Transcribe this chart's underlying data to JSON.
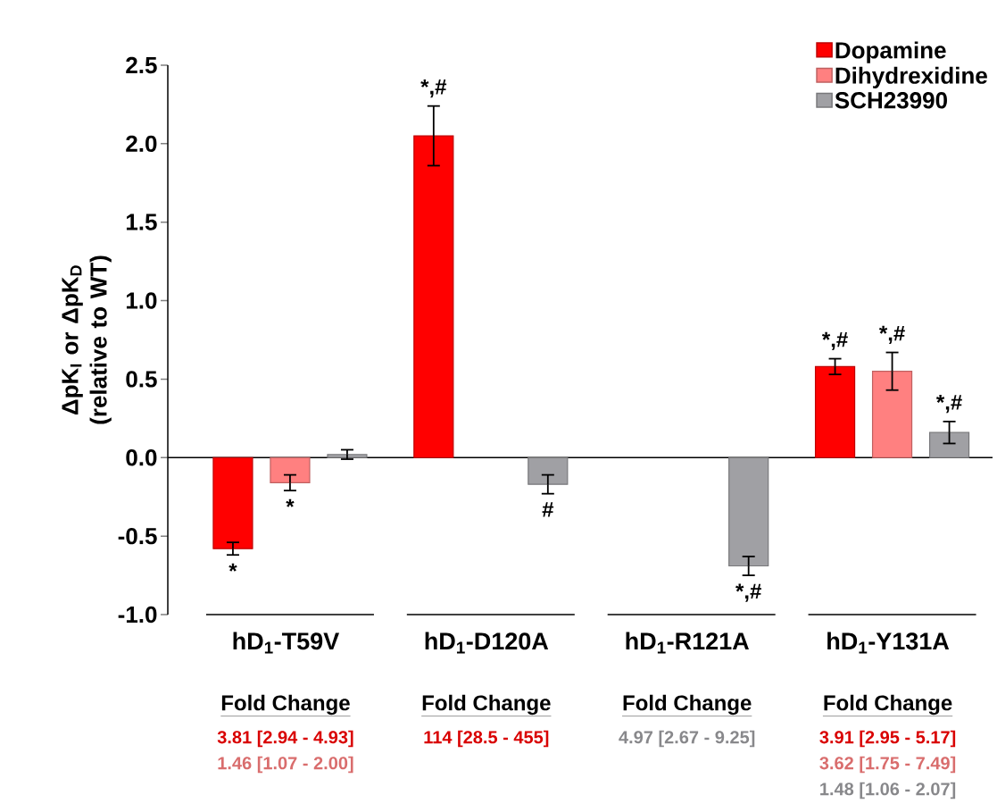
{
  "chart_data": {
    "type": "bar",
    "ylabel": "ΔpK$_{I}$ or ΔpK$_{D}$ (relative to WT)",
    "categories": [
      "hD$_{1}$-T59V",
      "hD$_{1}$-D120A",
      "hD$_{1}$-R121A",
      "hD$_{1}$-Y131A"
    ],
    "series": [
      {
        "name": "Dopamine",
        "color": "#ff0000",
        "values": [
          -0.58,
          2.05,
          null,
          0.58
        ],
        "errors": [
          0.04,
          0.19,
          null,
          0.05
        ],
        "value_labels": [
          "*",
          "*,#",
          null,
          "*,#"
        ]
      },
      {
        "name": "Dihydrexidine",
        "color": "#ff8080",
        "values": [
          -0.16,
          null,
          null,
          0.55
        ],
        "errors": [
          0.05,
          null,
          null,
          0.12
        ],
        "value_labels": [
          "*",
          null,
          null,
          "*,#"
        ]
      },
      {
        "name": "SCH23990",
        "color": "#a0a0a4",
        "values": [
          0.02,
          -0.17,
          -0.69,
          0.16
        ],
        "errors": [
          0.03,
          0.06,
          0.06,
          0.07
        ],
        "value_labels": [
          null,
          "#",
          "*,#",
          "*,#"
        ]
      }
    ],
    "ylim": [
      -1.0,
      2.5
    ],
    "yticks": [
      {
        "value": -1.0,
        "label": "-1.0"
      },
      {
        "value": -0.5,
        "label": "-0.5"
      },
      {
        "value": 0.0,
        "label": "0.0"
      },
      {
        "value": 0.5,
        "label": "0.5"
      },
      {
        "value": 1.0,
        "label": "1.0"
      },
      {
        "value": 1.5,
        "label": "1.5"
      },
      {
        "value": 2.0,
        "label": "2.0"
      },
      {
        "value": 2.5,
        "label": "2.5"
      }
    ],
    "legend": "top right",
    "annotations": [
      "Fold Change",
      "3.81 [2.94 - 4.93]",
      "1.46 [1.07 - 2.00]",
      "Fold Change",
      "114 [28.5 - 455]",
      "Fold Change",
      "4.97 [2.67 - 9.25]",
      "Fold Change",
      "3.91 [2.95 - 5.17]",
      "3.62 [1.75 - 7.49]",
      "1.48 [1.06 - 2.07]"
    ]
  }
}
